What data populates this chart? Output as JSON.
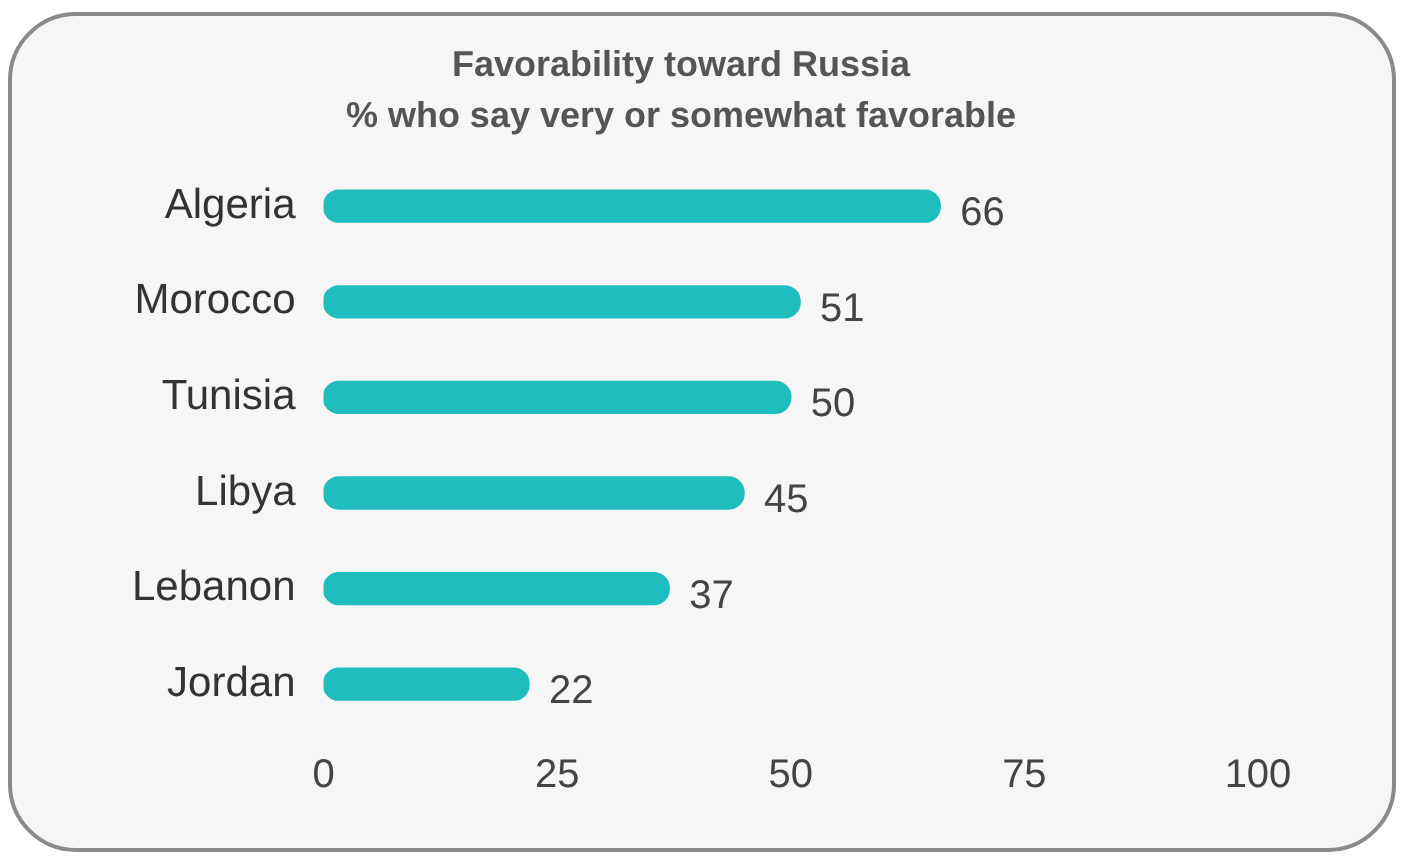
{
  "chart_data": {
    "type": "bar",
    "orientation": "horizontal",
    "title": "Favorability toward Russia",
    "subtitle": "% who say very or somewhat favorable",
    "categories": [
      "Algeria",
      "Morocco",
      "Tunisia",
      "Libya",
      "Lebanon",
      "Jordan"
    ],
    "values": [
      66,
      51,
      50,
      45,
      37,
      22
    ],
    "color": "#1fbdbd",
    "xlim": [
      0,
      100
    ],
    "xticks": [
      0,
      25,
      50,
      75,
      100
    ],
    "grid": false,
    "data_labels": true,
    "legend": false
  }
}
